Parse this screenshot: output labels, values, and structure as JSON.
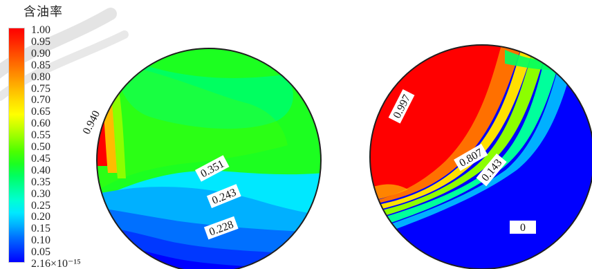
{
  "legend": {
    "title": "含油率",
    "values": [
      "1.00",
      "0.95",
      "0.90",
      "0.85",
      "0.80",
      "0.75",
      "0.70",
      "0.65",
      "0.60",
      "0.55",
      "0.50",
      "0.45",
      "0.40",
      "0.35",
      "0.30",
      "0.25",
      "0.20",
      "0.15",
      "0.10",
      "0.05",
      "2.16×10⁻¹⁵"
    ],
    "colors": [
      "#ff0000",
      "#ff2200",
      "#ff4a00",
      "#ff7000",
      "#ff9600",
      "#ffbc00",
      "#ffe000",
      "#ffff00",
      "#c8ff00",
      "#8cff00",
      "#4cff00",
      "#1cff20",
      "#00ff60",
      "#00ff9c",
      "#00ffd4",
      "#00e8ff",
      "#00b0ff",
      "#0070ff",
      "#0038ff",
      "#0000ff"
    ]
  },
  "left_plot": {
    "labels": [
      "0.940",
      "0.351",
      "0.243",
      "0.228"
    ]
  },
  "right_plot": {
    "labels": [
      "0.997",
      "0.807",
      "0.143",
      "0"
    ]
  }
}
